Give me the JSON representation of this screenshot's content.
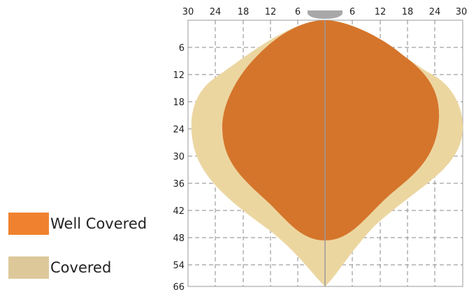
{
  "colors": {
    "well_covered": "#d5752c",
    "well_covered_swatch": "#f0822f",
    "covered": "#ecd6a0",
    "covered_swatch": "#ddc89a",
    "grid": "#8a8a8a",
    "frame": "#9a9a9a",
    "sensor": "#a8a8a8"
  },
  "legend": [
    {
      "label": "Well Covered"
    },
    {
      "label": "Covered"
    }
  ],
  "axes": {
    "top_ticks": [
      "30",
      "24",
      "18",
      "12",
      "6",
      "",
      "6",
      "12",
      "18",
      "24",
      "30"
    ],
    "left_ticks": [
      "6",
      "12",
      "18",
      "24",
      "30",
      "36",
      "42",
      "48",
      "54",
      "66"
    ]
  }
}
